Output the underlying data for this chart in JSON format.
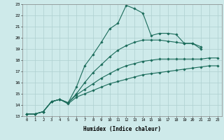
{
  "xlabel": "Humidex (Indice chaleur)",
  "bg_color": "#ceeaea",
  "grid_color": "#aed0d0",
  "line_color": "#1a6b5a",
  "xlim": [
    -0.5,
    23.5
  ],
  "ylim": [
    13,
    23
  ],
  "yticks": [
    13,
    14,
    15,
    16,
    17,
    18,
    19,
    20,
    21,
    22,
    23
  ],
  "xticks": [
    0,
    1,
    2,
    3,
    4,
    5,
    6,
    7,
    8,
    9,
    10,
    11,
    12,
    13,
    14,
    15,
    16,
    17,
    18,
    19,
    20,
    21,
    22,
    23
  ],
  "line1_x": [
    0,
    1,
    2,
    3,
    4,
    5,
    6,
    7,
    8,
    9,
    10,
    11,
    12,
    13,
    14,
    15,
    16,
    17,
    18,
    19,
    20,
    21
  ],
  "line1_y": [
    13.2,
    13.2,
    13.4,
    14.3,
    14.5,
    14.2,
    15.6,
    17.5,
    18.5,
    19.6,
    20.8,
    21.3,
    22.9,
    22.6,
    22.2,
    20.2,
    20.4,
    20.4,
    20.3,
    19.5,
    19.5,
    19.0
  ],
  "line2_x": [
    0,
    1,
    2,
    3,
    4,
    5,
    6,
    7,
    8,
    9,
    10,
    11,
    12,
    13,
    14,
    15,
    16,
    17,
    18,
    19,
    20,
    21
  ],
  "line2_y": [
    13.2,
    13.2,
    13.4,
    14.3,
    14.5,
    14.2,
    15.0,
    16.0,
    16.9,
    17.6,
    18.3,
    18.9,
    19.3,
    19.6,
    19.8,
    19.8,
    19.8,
    19.7,
    19.6,
    19.5,
    19.5,
    19.2
  ],
  "line3_x": [
    0,
    1,
    2,
    3,
    4,
    5,
    6,
    7,
    8,
    9,
    10,
    11,
    12,
    13,
    14,
    15,
    16,
    17,
    18,
    19,
    20,
    21,
    22,
    23
  ],
  "line3_y": [
    13.2,
    13.2,
    13.4,
    14.3,
    14.5,
    14.2,
    14.9,
    15.4,
    15.9,
    16.4,
    16.8,
    17.2,
    17.5,
    17.7,
    17.9,
    18.0,
    18.1,
    18.1,
    18.1,
    18.1,
    18.1,
    18.1,
    18.2,
    18.2
  ],
  "line4_x": [
    0,
    1,
    2,
    3,
    4,
    5,
    6,
    7,
    8,
    9,
    10,
    11,
    12,
    13,
    14,
    15,
    16,
    17,
    18,
    19,
    20,
    21,
    22,
    23
  ],
  "line4_y": [
    13.2,
    13.2,
    13.4,
    14.3,
    14.5,
    14.1,
    14.7,
    15.0,
    15.3,
    15.6,
    15.9,
    16.1,
    16.3,
    16.5,
    16.7,
    16.8,
    16.9,
    17.0,
    17.1,
    17.2,
    17.3,
    17.4,
    17.5,
    17.5
  ]
}
